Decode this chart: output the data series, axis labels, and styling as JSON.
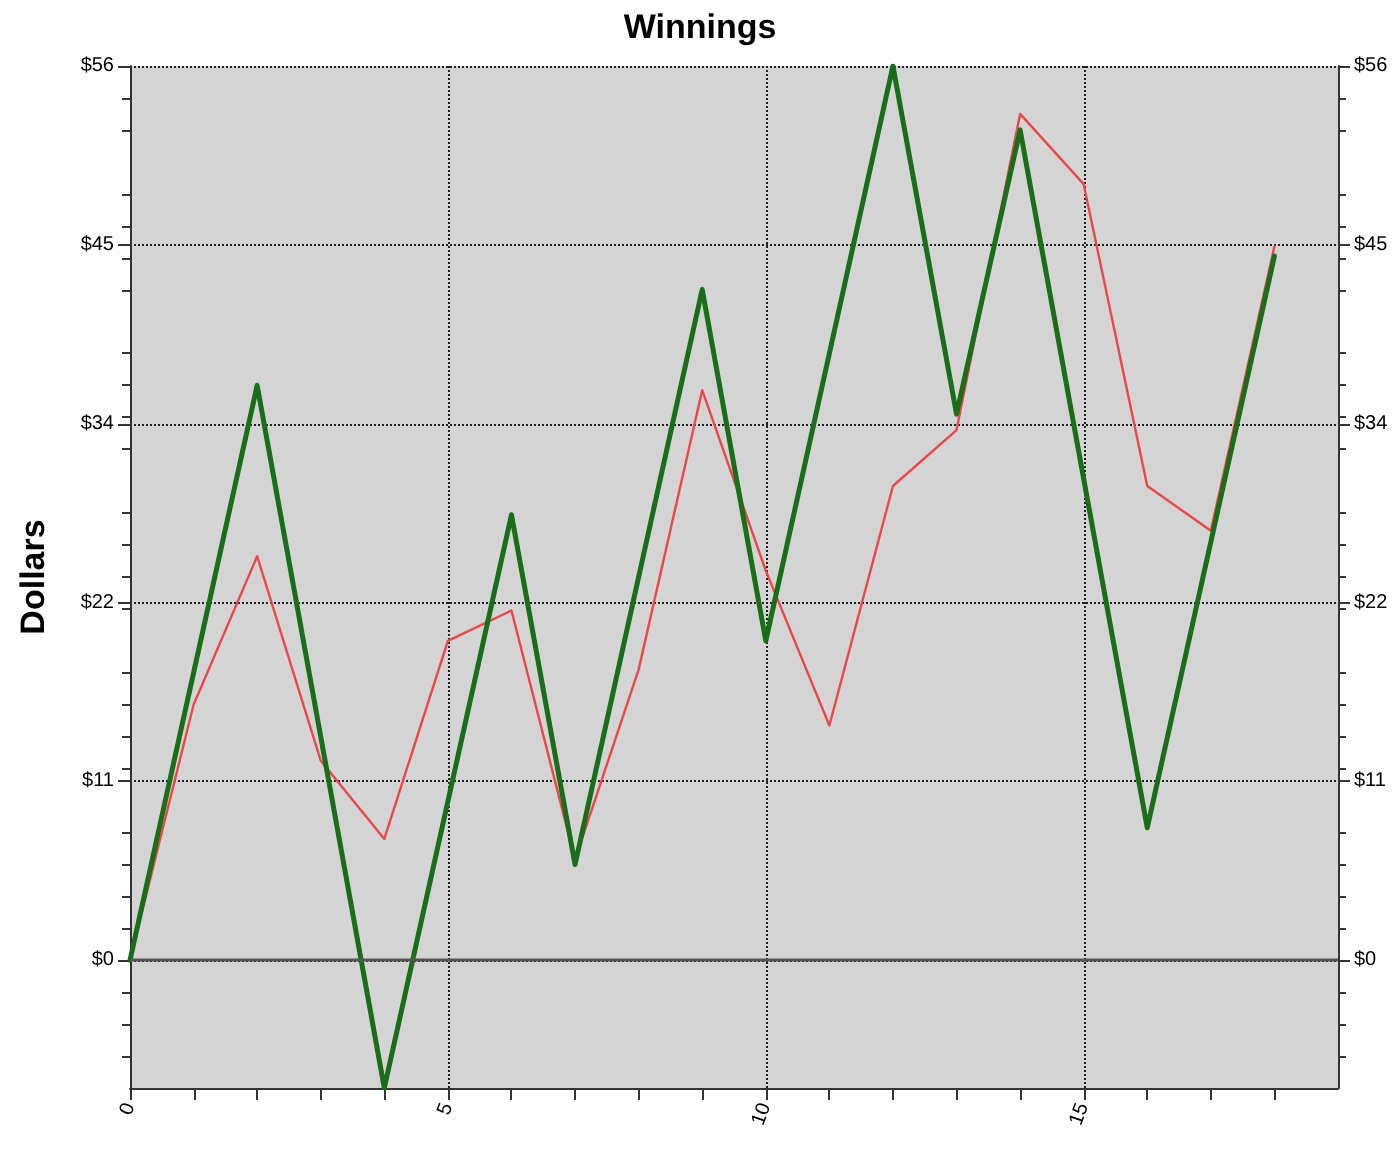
{
  "chart_data": {
    "type": "line",
    "title": "Winnings",
    "ylabel": "Dollars",
    "xlim": [
      0,
      19
    ],
    "xticks": [
      0,
      5,
      10,
      15
    ],
    "ylim": [
      -8,
      56
    ],
    "yticks": [
      {
        "value": 0,
        "label": "$0"
      },
      {
        "value": 11.2,
        "label": "$11"
      },
      {
        "value": 22.4,
        "label": "$22"
      },
      {
        "value": 33.6,
        "label": "$34"
      },
      {
        "value": 44.8,
        "label": "$45"
      },
      {
        "value": 56,
        "label": "$56"
      }
    ],
    "y2lim": [
      -8,
      56
    ],
    "y2ticks": [
      {
        "value": 0,
        "label": "$0"
      },
      {
        "value": 11.2,
        "label": "$11"
      },
      {
        "value": 22.4,
        "label": "$22"
      },
      {
        "value": 33.6,
        "label": "$34"
      },
      {
        "value": 44.8,
        "label": "$45"
      },
      {
        "value": 56,
        "label": "$56"
      }
    ],
    "series": [
      {
        "color": "#e84848",
        "x": [
          0,
          1,
          2,
          3,
          4,
          5,
          6,
          7,
          8,
          9,
          10,
          11,
          12,
          13,
          14,
          15,
          16,
          17,
          18
        ],
        "values": [
          0,
          16,
          25.3,
          12.5,
          7.6,
          20,
          21.9,
          6.3,
          18.2,
          35.7,
          24.4,
          14.7,
          29.7,
          33.2,
          53,
          48.6,
          29.7,
          26.9,
          44.7
        ]
      },
      {
        "color": "#1a6e1a",
        "x": [
          0,
          2,
          4,
          6,
          7,
          9,
          10,
          12,
          13,
          14,
          16,
          18
        ],
        "values": [
          0,
          36,
          -8,
          27.9,
          6,
          42,
          20,
          56,
          34.2,
          52,
          8.3,
          44.1
        ]
      }
    ],
    "ref_lines": [
      {
        "axis": "y",
        "value": 0,
        "color": "#555555",
        "line_style": "solid"
      }
    ],
    "grid": true,
    "marker": "none",
    "line_style": "solid"
  }
}
